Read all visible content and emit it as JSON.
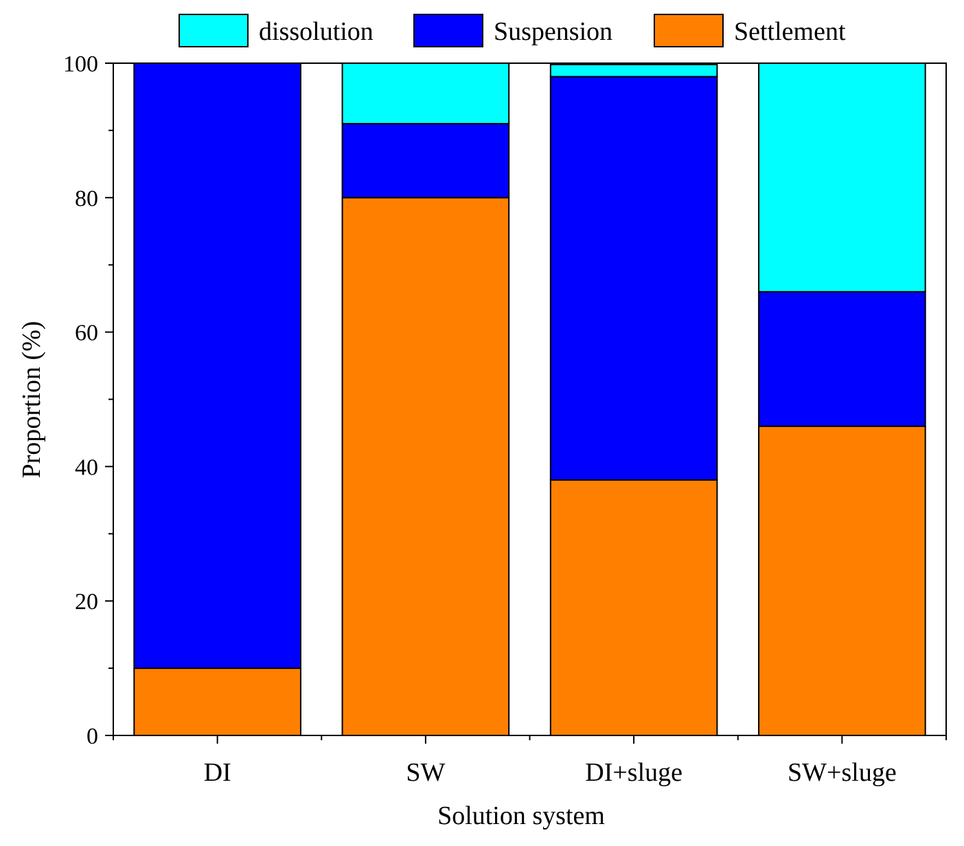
{
  "chart_data": {
    "type": "bar",
    "stacked": true,
    "title": "",
    "xlabel": "Solution system",
    "ylabel": "Proportion (%)",
    "ylim": [
      0,
      100
    ],
    "yticks": [
      0,
      20,
      40,
      60,
      80,
      100
    ],
    "yminor_ticks": [
      10,
      30,
      50,
      70,
      90
    ],
    "categories": [
      "DI",
      "SW",
      "DI+sluge",
      "SW+sluge"
    ],
    "series": [
      {
        "name": "Settlement",
        "color": "#FF8000",
        "values": [
          10,
          80,
          38,
          46
        ]
      },
      {
        "name": "Suspension",
        "color": "#0000FF",
        "values": [
          90,
          11,
          60,
          20
        ]
      },
      {
        "name": "dissolution",
        "color": "#00FFFF",
        "values": [
          0,
          9,
          1.8,
          34
        ]
      }
    ],
    "legend": {
      "position": "top-center",
      "order": [
        "dissolution",
        "Suspension",
        "Settlement"
      ]
    }
  }
}
